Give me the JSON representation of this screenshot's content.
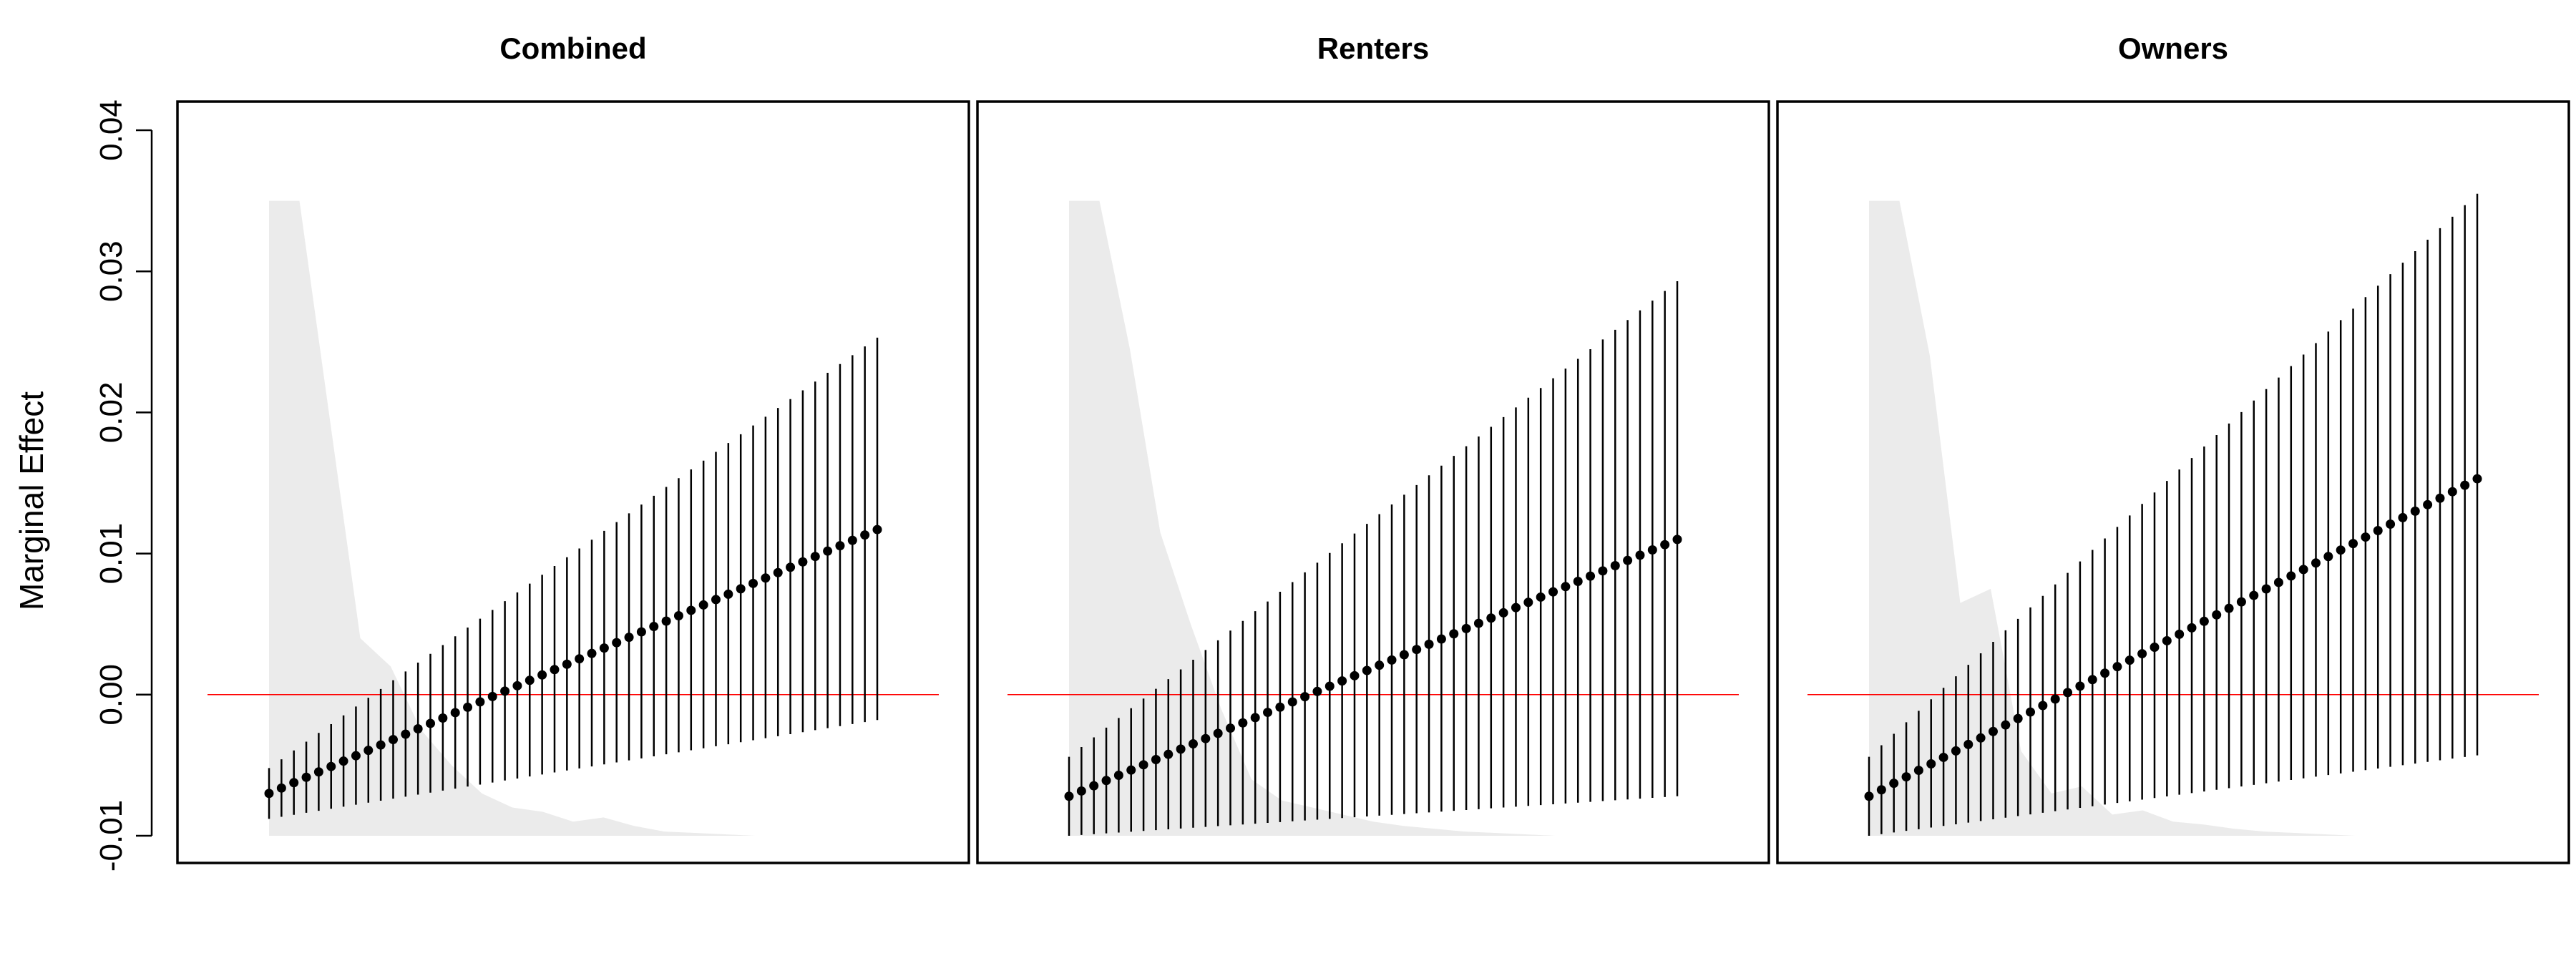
{
  "chart_data": {
    "type": "scatter",
    "ylabel": "Marginal Effect",
    "ylim": [
      -0.01,
      0.04
    ],
    "yticks": [
      -0.01,
      0.0,
      0.01,
      0.02,
      0.03,
      0.04
    ],
    "ytick_labels": [
      "-0.01",
      "0.00",
      "0.01",
      "0.02",
      "0.03",
      "0.04"
    ],
    "grid": false,
    "colors": {
      "points": "#000000",
      "ci": "#000000",
      "reference": "#ff0000",
      "histogram": "#ebebeb",
      "frame": "#000000"
    },
    "reference_line": 0.0,
    "n_points": 50,
    "panels": [
      {
        "title": "Combined",
        "estimate_start": -0.007,
        "estimate_end": 0.0117,
        "lower_start": -0.0088,
        "lower_end": -0.0018,
        "upper_start": -0.0052,
        "upper_end": 0.0253,
        "density": [
          0.035,
          0.035,
          0.0195,
          0.004,
          0.002,
          -0.0025,
          -0.005,
          -0.007,
          -0.008,
          -0.0083,
          -0.009,
          -0.0087,
          -0.0093,
          -0.0097,
          -0.0098,
          -0.0099,
          -0.01,
          -0.01,
          -0.01,
          -0.01,
          -0.01
        ]
      },
      {
        "title": "Renters",
        "estimate_start": -0.0072,
        "estimate_end": 0.011,
        "lower_start": -0.01,
        "lower_end": -0.0072,
        "upper_start": -0.0044,
        "upper_end": 0.0293,
        "density": [
          0.035,
          0.035,
          0.0245,
          0.0115,
          0.005,
          -0.001,
          -0.006,
          -0.0075,
          -0.008,
          -0.0085,
          -0.009,
          -0.0093,
          -0.0095,
          -0.0097,
          -0.0098,
          -0.0099,
          -0.01,
          -0.01,
          -0.01,
          -0.01,
          -0.01
        ]
      },
      {
        "title": "Owners",
        "estimate_start": -0.0072,
        "estimate_end": 0.0153,
        "lower_start": -0.01,
        "lower_end": -0.0043,
        "upper_start": -0.0044,
        "upper_end": 0.0355,
        "density": [
          0.035,
          0.035,
          0.024,
          0.0065,
          0.0075,
          -0.004,
          -0.007,
          -0.0065,
          -0.0085,
          -0.0082,
          -0.009,
          -0.0092,
          -0.0095,
          -0.0097,
          -0.0098,
          -0.0099,
          -0.01,
          -0.01,
          -0.01,
          -0.01,
          -0.01
        ]
      }
    ]
  }
}
